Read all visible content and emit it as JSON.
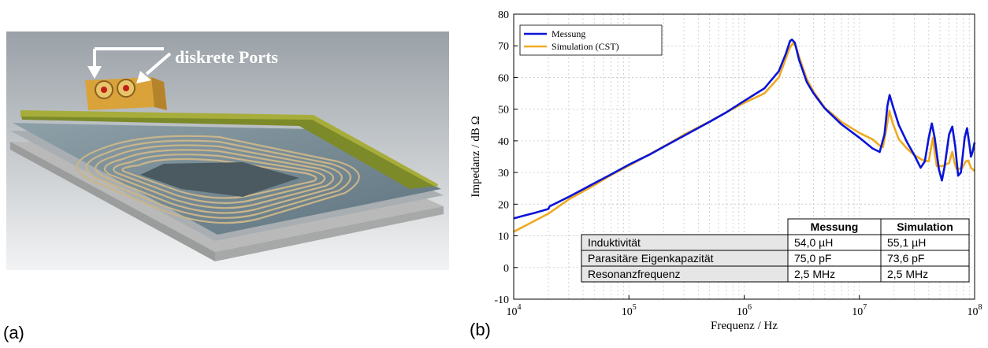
{
  "panel_a": {
    "label": "(a)",
    "annotation": "diskrete Ports"
  },
  "panel_b": {
    "label": "(b)"
  },
  "chart_data": {
    "type": "line",
    "title": "",
    "xlabel": "Frequenz / Hz",
    "ylabel": "Impedanz / dB  Ω",
    "x_scale": "log",
    "xlim": [
      10000,
      100000000
    ],
    "ylim": [
      -10,
      80
    ],
    "grid": true,
    "legend_position": "top-left",
    "x_tick_labels": [
      "10^4",
      "10^5",
      "10^6",
      "10^7",
      "10^8"
    ],
    "y_ticks": [
      -10,
      0,
      10,
      20,
      30,
      40,
      50,
      60,
      70,
      80
    ],
    "series": [
      {
        "name": "Messung",
        "color": "#0a14d8",
        "points": [
          [
            10000,
            15.5
          ],
          [
            12000,
            16.3
          ],
          [
            15000,
            17.2
          ],
          [
            18000,
            18.0
          ],
          [
            20000,
            18.5
          ],
          [
            20500,
            19.3
          ],
          [
            30000,
            22.3
          ],
          [
            50000,
            26.6
          ],
          [
            70000,
            29.4
          ],
          [
            100000,
            32.5
          ],
          [
            150000,
            35.6
          ],
          [
            200000,
            38.1
          ],
          [
            300000,
            41.6
          ],
          [
            500000,
            46.0
          ],
          [
            700000,
            49.0
          ],
          [
            1000000,
            52.6
          ],
          [
            1500000,
            56.6
          ],
          [
            2000000,
            62.0
          ],
          [
            2300000,
            67.5
          ],
          [
            2500000,
            71.5
          ],
          [
            2600000,
            72.0
          ],
          [
            2750000,
            71.0
          ],
          [
            3000000,
            65.5
          ],
          [
            3500000,
            58.5
          ],
          [
            4000000,
            55.0
          ],
          [
            5000000,
            50.3
          ],
          [
            7000000,
            45.2
          ],
          [
            10000000,
            41.0
          ],
          [
            13000000,
            37.6
          ],
          [
            15000000,
            36.5
          ],
          [
            16500000,
            42.0
          ],
          [
            17500000,
            51.0
          ],
          [
            18300000,
            54.5
          ],
          [
            19500000,
            51.0
          ],
          [
            22000000,
            45.0
          ],
          [
            26000000,
            39.5
          ],
          [
            30000000,
            35.5
          ],
          [
            34000000,
            31.5
          ],
          [
            37000000,
            33.5
          ],
          [
            40000000,
            41.0
          ],
          [
            42500000,
            45.5
          ],
          [
            45000000,
            41.0
          ],
          [
            49000000,
            31.0
          ],
          [
            52000000,
            27.5
          ],
          [
            55000000,
            32.0
          ],
          [
            60000000,
            42.0
          ],
          [
            64000000,
            44.5
          ],
          [
            68000000,
            38.0
          ],
          [
            72000000,
            29.0
          ],
          [
            76000000,
            30.0
          ],
          [
            82000000,
            41.0
          ],
          [
            86000000,
            44.0
          ],
          [
            90000000,
            39.0
          ],
          [
            93000000,
            35.0
          ],
          [
            96000000,
            36.5
          ],
          [
            100000000,
            39.5
          ]
        ]
      },
      {
        "name": "Simulation (CST)",
        "color": "#eeaa22",
        "points": [
          [
            10000,
            11.3
          ],
          [
            20000,
            17.0
          ],
          [
            30000,
            21.5
          ],
          [
            50000,
            26.0
          ],
          [
            70000,
            29.2
          ],
          [
            100000,
            32.2
          ],
          [
            150000,
            35.7
          ],
          [
            200000,
            38.2
          ],
          [
            300000,
            41.9
          ],
          [
            500000,
            46.1
          ],
          [
            700000,
            49.0
          ],
          [
            1000000,
            52.0
          ],
          [
            1500000,
            55.0
          ],
          [
            2000000,
            60.0
          ],
          [
            2300000,
            66.0
          ],
          [
            2500000,
            69.5
          ],
          [
            2650000,
            70.8
          ],
          [
            2800000,
            70.0
          ],
          [
            3000000,
            66.5
          ],
          [
            3500000,
            59.5
          ],
          [
            4000000,
            55.5
          ],
          [
            5000000,
            50.5
          ],
          [
            7000000,
            46.0
          ],
          [
            10000000,
            42.5
          ],
          [
            13000000,
            40.5
          ],
          [
            15000000,
            38.5
          ],
          [
            16000000,
            38.0
          ],
          [
            17000000,
            43.0
          ],
          [
            18200000,
            49.5
          ],
          [
            19500000,
            45.5
          ],
          [
            22000000,
            40.5
          ],
          [
            26000000,
            37.5
          ],
          [
            30000000,
            35.5
          ],
          [
            35000000,
            34.0
          ],
          [
            40000000,
            33.5
          ],
          [
            42000000,
            38.0
          ],
          [
            43500000,
            41.0
          ],
          [
            45000000,
            36.5
          ],
          [
            47000000,
            32.0
          ],
          [
            52000000,
            32.0
          ],
          [
            60000000,
            33.0
          ],
          [
            64000000,
            36.5
          ],
          [
            67000000,
            33.0
          ],
          [
            70000000,
            31.0
          ],
          [
            78000000,
            31.5
          ],
          [
            84000000,
            33.5
          ],
          [
            88000000,
            33.8
          ],
          [
            93000000,
            31.5
          ],
          [
            100000000,
            30.5
          ]
        ]
      }
    ],
    "table": {
      "headers": [
        "",
        "Messung",
        "Simulation"
      ],
      "rows": [
        [
          "Induktivität",
          "54,0 µH",
          "55,1 µH"
        ],
        [
          "Parasitäre Eigenkapazität",
          "75,0 pF",
          "73,6 pF"
        ],
        [
          "Resonanzfrequenz",
          "2,5 MHz",
          "2,5 MHz"
        ]
      ]
    }
  }
}
